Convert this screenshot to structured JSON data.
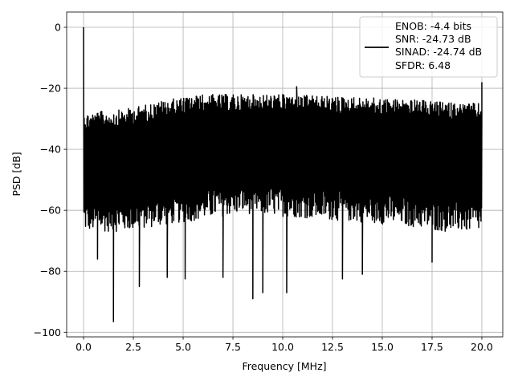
{
  "chart_data": {
    "type": "line",
    "title": "",
    "xlabel": "Frequency [MHz]",
    "ylabel": "PSD [dB]",
    "xlim": [
      -0.85,
      21.05
    ],
    "ylim": [
      -101.5,
      5
    ],
    "xticks": [
      0.0,
      2.5,
      5.0,
      7.5,
      10.0,
      12.5,
      15.0,
      17.5,
      20.0
    ],
    "xtick_labels": [
      "0.0",
      "2.5",
      "5.0",
      "7.5",
      "10.0",
      "12.5",
      "15.0",
      "17.5",
      "20.0"
    ],
    "yticks": [
      0,
      -20,
      -40,
      -60,
      -80,
      -100
    ],
    "ytick_labels": [
      "0",
      "−20",
      "−40",
      "−60",
      "−80",
      "−100"
    ],
    "grid": true,
    "legend_position": "upper-right",
    "series": [
      {
        "legend_lines": [
          "ENOB: -4.4 bits",
          "SNR: -24.73 dB",
          "SINAD: -24.74 dB",
          "SFDR: 6.48"
        ],
        "color": "#000000",
        "peak_value": {
          "x": 0.0,
          "y": 0.0
        },
        "frequency_range": [
          0.0,
          20.0
        ],
        "upper_envelope": [
          [
            0.0,
            -28
          ],
          [
            2.0,
            -27
          ],
          [
            4.0,
            -24
          ],
          [
            6.0,
            -22
          ],
          [
            8.0,
            -22
          ],
          [
            10.0,
            -22
          ],
          [
            12.0,
            -22.5
          ],
          [
            14.0,
            -23
          ],
          [
            16.0,
            -23.5
          ],
          [
            18.0,
            -24.5
          ],
          [
            20.0,
            -25
          ]
        ],
        "lower_envelope": [
          [
            0.0,
            -67
          ],
          [
            2.0,
            -67
          ],
          [
            4.0,
            -65
          ],
          [
            6.0,
            -63
          ],
          [
            8.0,
            -61
          ],
          [
            10.0,
            -62
          ],
          [
            12.0,
            -63
          ],
          [
            14.0,
            -64
          ],
          [
            16.0,
            -65
          ],
          [
            18.0,
            -67
          ],
          [
            20.0,
            -67
          ]
        ],
        "notable_dips": [
          [
            0.7,
            -76
          ],
          [
            1.5,
            -96.5
          ],
          [
            2.8,
            -85
          ],
          [
            4.2,
            -82
          ],
          [
            5.1,
            -82.5
          ],
          [
            7.0,
            -82
          ],
          [
            8.5,
            -89
          ],
          [
            9.0,
            -87
          ],
          [
            10.2,
            -87
          ],
          [
            13.0,
            -82.5
          ],
          [
            14.0,
            -81
          ],
          [
            17.5,
            -77
          ]
        ],
        "notable_peaks": [
          [
            10.7,
            -19.5
          ],
          [
            20.0,
            -18
          ]
        ]
      }
    ]
  }
}
